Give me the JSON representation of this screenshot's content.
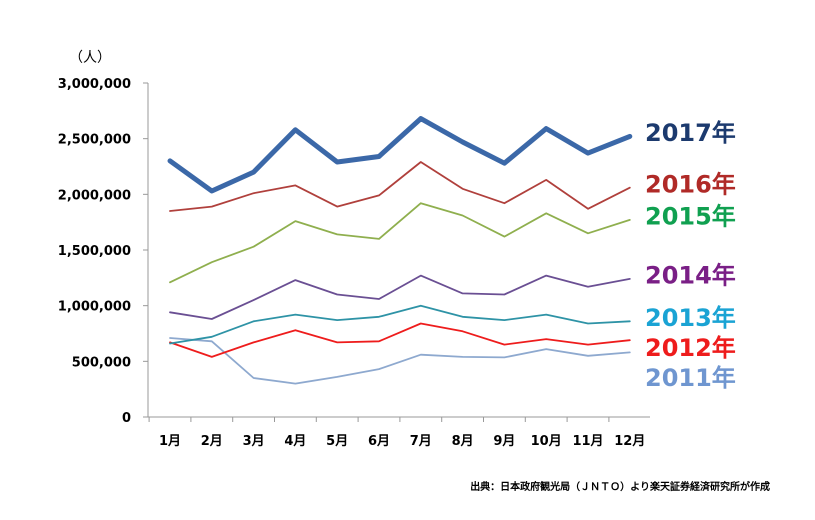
{
  "chart_data": {
    "type": "line",
    "y_unit": "（人）",
    "source": "出典：日本政府観光局（ＪＮＴＯ）より楽天証券経済研究所が作成",
    "categories": [
      "1月",
      "2月",
      "3月",
      "4月",
      "5月",
      "6月",
      "7月",
      "8月",
      "9月",
      "10月",
      "11月",
      "12月"
    ],
    "ylim": [
      0,
      3000000
    ],
    "yticks": [
      "0",
      "500,000",
      "1,000,000",
      "1,500,000",
      "2,000,000",
      "2,500,000",
      "3,000,000"
    ],
    "grid": false,
    "legend": "right",
    "series": [
      {
        "name": "2011年",
        "color": "#8ea9cf",
        "label_color": "#6f96d0",
        "emphasis": false,
        "values": [
          710000,
          680000,
          350000,
          300000,
          360000,
          430000,
          560000,
          540000,
          535000,
          610000,
          550000,
          580000
        ]
      },
      {
        "name": "2012年",
        "color": "#ee1c1c",
        "label_color": "#ee1c1c",
        "emphasis": false,
        "values": [
          670000,
          540000,
          670000,
          780000,
          670000,
          680000,
          840000,
          770000,
          650000,
          700000,
          650000,
          690000
        ]
      },
      {
        "name": "2013年",
        "color": "#2e93a6",
        "label_color": "#1aa3d4",
        "emphasis": false,
        "values": [
          660000,
          720000,
          860000,
          920000,
          870000,
          900000,
          1000000,
          900000,
          870000,
          920000,
          840000,
          860000
        ]
      },
      {
        "name": "2014年",
        "color": "#6a4f93",
        "label_color": "#7a1f86",
        "emphasis": false,
        "values": [
          940000,
          880000,
          1050000,
          1230000,
          1100000,
          1060000,
          1270000,
          1110000,
          1100000,
          1270000,
          1170000,
          1240000
        ]
      },
      {
        "name": "2015年",
        "color": "#8faf4e",
        "label_color": "#10a050",
        "emphasis": false,
        "values": [
          1210000,
          1390000,
          1530000,
          1760000,
          1640000,
          1600000,
          1920000,
          1810000,
          1620000,
          1830000,
          1650000,
          1770000
        ]
      },
      {
        "name": "2016年",
        "color": "#b0403c",
        "label_color": "#b02a27",
        "emphasis": false,
        "values": [
          1850000,
          1890000,
          2010000,
          2080000,
          1890000,
          1990000,
          2290000,
          2050000,
          1920000,
          2130000,
          1870000,
          2060000
        ]
      },
      {
        "name": "2017年",
        "color": "#3b68a8",
        "label_color": "#1c3a6e",
        "emphasis": true,
        "values": [
          2300000,
          2030000,
          2200000,
          2580000,
          2290000,
          2340000,
          2680000,
          2470000,
          2280000,
          2590000,
          2370000,
          2520000
        ]
      }
    ]
  }
}
